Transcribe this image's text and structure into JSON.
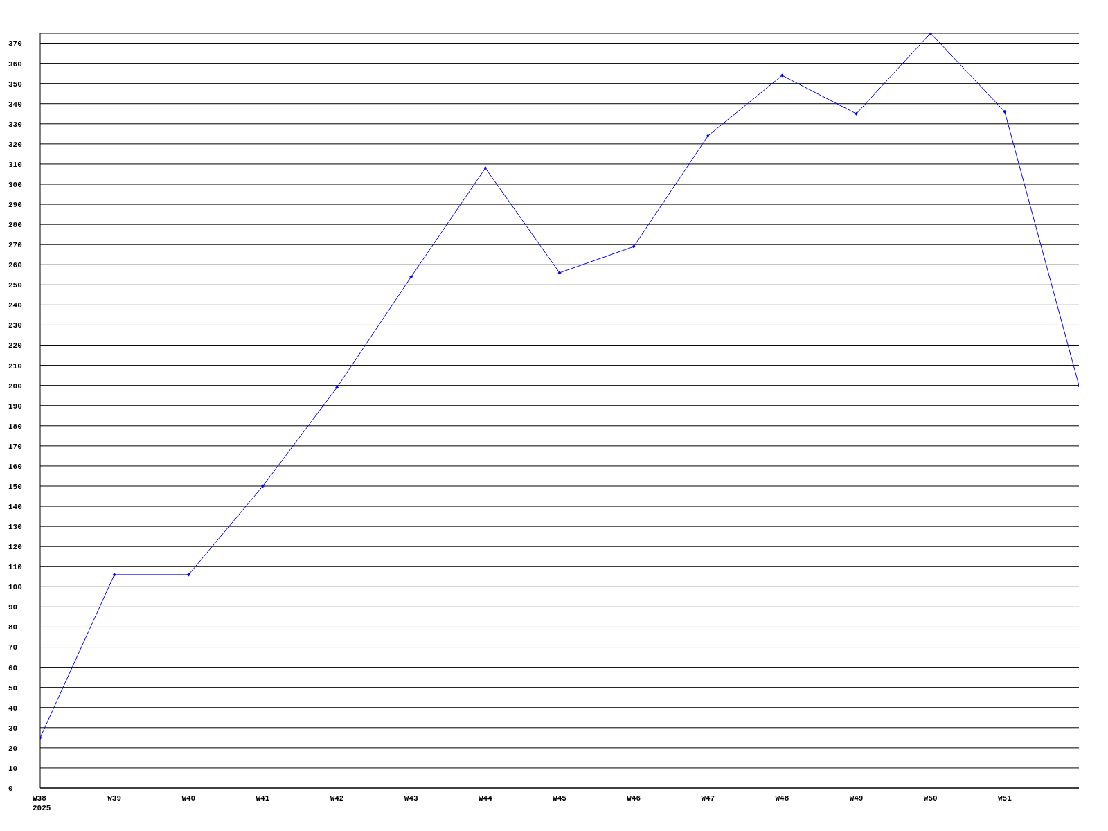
{
  "chart_data": {
    "type": "line",
    "categories": [
      "W38\n2025",
      "W39",
      "W40",
      "W41",
      "W42",
      "W43",
      "W44",
      "W45",
      "W46",
      "W47",
      "W48",
      "W49",
      "W50",
      "W51",
      null
    ],
    "series": [
      {
        "color": "#0000ff",
        "values": [
          25,
          106,
          106,
          150,
          199,
          254,
          308,
          256,
          269,
          324,
          354,
          335,
          375,
          336,
          200
        ]
      }
    ],
    "ylim": [
      0,
      375
    ],
    "yticks": [
      0,
      10,
      20,
      30,
      40,
      50,
      60,
      70,
      80,
      90,
      100,
      110,
      120,
      130,
      140,
      150,
      160,
      170,
      180,
      190,
      200,
      210,
      220,
      230,
      240,
      250,
      260,
      270,
      280,
      290,
      300,
      310,
      320,
      330,
      340,
      350,
      360,
      370
    ],
    "grid": "y",
    "marker": "diamond",
    "line_style": "solid",
    "legend": false
  }
}
